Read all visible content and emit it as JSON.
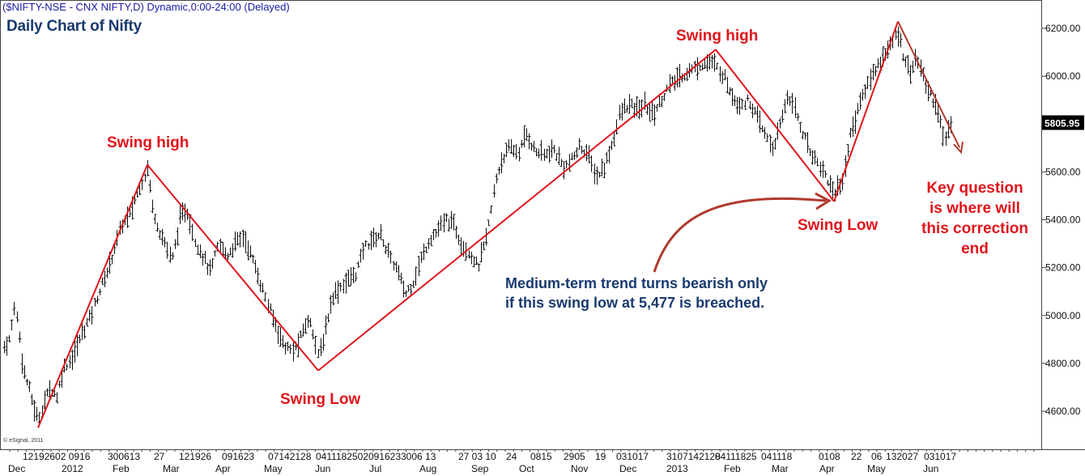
{
  "header": {
    "symbol_line": "($NIFTY-NSE - CNX NIFTY,D) Dynamic,0:00-24:00 (Delayed)",
    "chart_title": "Daily Chart of Nifty",
    "copyright": "© eSignal, 2011"
  },
  "annotations": {
    "swing_high_1": "Swing high",
    "swing_low_1": "Swing Low",
    "swing_high_2": "Swing high",
    "swing_low_2": "Swing Low",
    "medium_term": [
      "Medium-term trend turns bearish only",
      "if this swing low at 5,477 is breached."
    ],
    "key_question": [
      "Key question",
      "is where will",
      "this correction",
      "end"
    ]
  },
  "price_label": {
    "value": "5805.95",
    "level": 5805.95
  },
  "colors": {
    "trendline": "#e0151b",
    "arrow": "#b03a2e",
    "price_bars": "#111111",
    "last_price_box": "#000000"
  },
  "chart_data": {
    "type": "ohlc",
    "ylim": [
      4450,
      6250
    ],
    "y_ticks": [
      4600,
      4800,
      5000,
      5200,
      5400,
      5600,
      5800,
      6000,
      6200
    ],
    "y_tick_labels": [
      "4600.00",
      "4800.00",
      "5000.00",
      "5200.00",
      "5400.00",
      "5600.00",
      "5800.00",
      "6000.00",
      "6200.00"
    ],
    "x_day_labels": [
      "12",
      "19",
      "26",
      "02",
      "09",
      "16",
      "30",
      "06",
      "13",
      "27",
      "12",
      "19",
      "26",
      "09",
      "16",
      "23",
      "07",
      "14",
      "21",
      "28",
      "04",
      "11",
      "18",
      "25",
      "02",
      "09",
      "16",
      "23",
      "30",
      "06",
      "13",
      "27",
      "03",
      "10",
      "24",
      "08",
      "15",
      "29",
      "05",
      "19",
      "03",
      "10",
      "17",
      "31",
      "07",
      "14",
      "21",
      "28",
      "04",
      "11",
      "18",
      "25",
      "04",
      "11",
      "18",
      "01",
      "08",
      "22",
      "06",
      "13",
      "20",
      "27",
      "03",
      "10",
      "17"
    ],
    "x_month_labels": [
      "Dec",
      "2012",
      "Feb",
      "Mar",
      "Apr",
      "May",
      "Jun",
      "Jul",
      "Aug",
      "Sep",
      "Oct",
      "Nov",
      "Dec",
      "2013",
      "Feb",
      "Mar",
      "Apr",
      "May",
      "Jun"
    ],
    "swing_points": [
      {
        "label": "Swing Low",
        "date": "Dec 2011",
        "price": 4531
      },
      {
        "label": "Swing high",
        "date": "Feb 2012",
        "price": 5630
      },
      {
        "label": "Swing Low",
        "date": "Jun 2012",
        "price": 4770
      },
      {
        "label": "Swing high",
        "date": "Jan 2013",
        "price": 6111
      },
      {
        "label": "Swing Low",
        "date": "Apr 2013",
        "price": 5477
      },
      {
        "label": "Swing high",
        "date": "May 2013",
        "price": 6229
      }
    ],
    "projection": {
      "from_price": 6229,
      "to_price": 5665
    },
    "trendline_prices": [
      4531,
      5630,
      4770,
      6111,
      5477,
      6229
    ],
    "last_close": 5805.95
  }
}
